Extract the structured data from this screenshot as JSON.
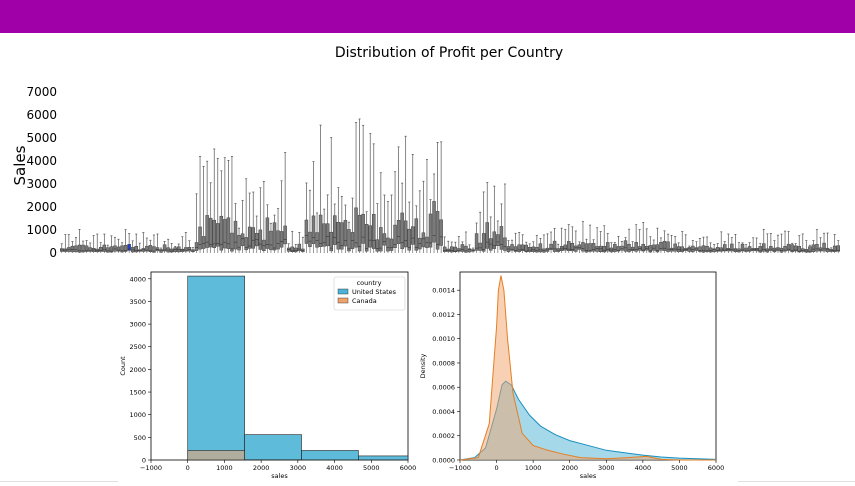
{
  "title": "Distribution of Profit per Country",
  "colors": {
    "topbar": "#a000a8",
    "box": "#7a7a7a",
    "highlight": "#1f3fd0",
    "us": "#4cb4d6",
    "canada": "#f2a36b",
    "us_line": "#1a8fbf",
    "canada_line": "#e67e22"
  },
  "chart_data": [
    {
      "type": "box",
      "ylabel": "Sales",
      "ylim": [
        0,
        7600
      ],
      "yticks": [
        0,
        1000,
        2000,
        3000,
        4000,
        5000,
        6000,
        7000
      ],
      "n_boxes": 220,
      "highlight_index": 19
    },
    {
      "type": "histogram",
      "xlabel": "sales",
      "ylabel": "Count",
      "xlim": [
        -1000,
        6000
      ],
      "ylim": [
        0,
        4150
      ],
      "xticks": [
        -1000,
        0,
        1000,
        2000,
        3000,
        4000,
        5000,
        6000
      ],
      "yticks": [
        0,
        500,
        1000,
        1500,
        2000,
        2500,
        3000,
        3500,
        4000
      ],
      "legend_title": "country",
      "legend_position": "top-right",
      "bins": [
        [
          0,
          1550
        ],
        [
          1550,
          3100
        ],
        [
          3100,
          4650
        ],
        [
          4650,
          6200
        ]
      ],
      "series": [
        {
          "name": "United States",
          "values": [
            4060,
            560,
            210,
            90
          ]
        },
        {
          "name": "Canada",
          "values": [
            210,
            5,
            2,
            1
          ]
        }
      ]
    },
    {
      "type": "area",
      "xlabel": "sales",
      "ylabel": "Density",
      "xlim": [
        -1000,
        6000
      ],
      "ylim": [
        0,
        0.00155
      ],
      "xticks": [
        -1000,
        0,
        1000,
        2000,
        3000,
        4000,
        5000,
        6000
      ],
      "yticks": [
        "0.0000",
        "0.0002",
        "0.0004",
        "0.0006",
        "0.0008",
        "0.0010",
        "0.0012",
        "0.0014"
      ],
      "series": [
        {
          "name": "United States",
          "x": [
            -1000,
            -600,
            -300,
            0,
            150,
            250,
            400,
            600,
            900,
            1200,
            1600,
            2000,
            2500,
            3000,
            3500,
            4000,
            4500,
            5000,
            5500,
            6000
          ],
          "y": [
            0.0,
            2e-05,
            0.0001,
            0.00042,
            0.00062,
            0.00065,
            0.00062,
            0.0005,
            0.00037,
            0.00028,
            0.00021,
            0.00016,
            0.00012,
            8e-05,
            6e-05,
            4e-05,
            2.5e-05,
            1.5e-05,
            1e-05,
            5e-06
          ]
        },
        {
          "name": "Canada",
          "x": [
            -1000,
            -500,
            -200,
            0,
            50,
            120,
            200,
            300,
            450,
            700,
            1000,
            1400,
            1800,
            2300,
            3000,
            3600,
            4100,
            4500,
            5000,
            6000
          ],
          "y": [
            0.0,
            2e-05,
            0.0003,
            0.0011,
            0.0014,
            0.00152,
            0.0014,
            0.001,
            0.00055,
            0.00022,
            0.00012,
            8e-05,
            5e-05,
            2e-05,
            1e-05,
            2e-05,
            3e-05,
            5e-06,
            0.0,
            0.0
          ]
        }
      ]
    }
  ]
}
